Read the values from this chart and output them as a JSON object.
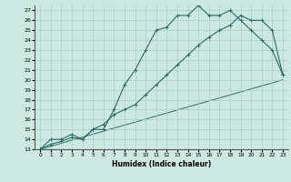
{
  "xlabel": "Humidex (Indice chaleur)",
  "bg_color": "#cce8e0",
  "grid_color": "#aacccc",
  "line_color": "#2a6b65",
  "xlim": [
    -0.5,
    23.5
  ],
  "ylim": [
    13,
    27.5
  ],
  "xticks": [
    0,
    1,
    2,
    3,
    4,
    5,
    6,
    7,
    8,
    9,
    10,
    11,
    12,
    13,
    14,
    15,
    16,
    17,
    18,
    19,
    20,
    21,
    22,
    23
  ],
  "yticks": [
    13,
    14,
    15,
    16,
    17,
    18,
    19,
    20,
    21,
    22,
    23,
    24,
    25,
    26,
    27
  ],
  "line1_x": [
    0,
    1,
    2,
    3,
    4,
    5,
    6,
    7,
    8,
    9,
    10,
    11,
    12,
    13,
    14,
    15,
    16,
    17,
    18,
    19,
    20,
    21,
    22,
    23
  ],
  "line1_y": [
    13,
    14,
    14,
    14.5,
    14,
    15,
    15,
    17,
    19.5,
    21,
    23,
    25,
    25.3,
    26.5,
    26.5,
    27.5,
    26.5,
    26.5,
    27,
    26,
    25,
    24,
    23,
    20.5
  ],
  "line2_x": [
    0,
    1,
    2,
    3,
    4,
    5,
    6,
    7,
    8,
    9,
    10,
    11,
    12,
    13,
    14,
    15,
    16,
    17,
    18,
    19,
    20,
    21,
    22,
    23
  ],
  "line2_y": [
    13,
    13.5,
    13.8,
    14.2,
    14,
    15,
    15.5,
    16.5,
    17,
    17.5,
    18.5,
    19.5,
    20.5,
    21.5,
    22.5,
    23.5,
    24.3,
    25,
    25.5,
    26.5,
    26,
    26,
    25,
    20.5
  ],
  "line3_x": [
    0,
    23
  ],
  "line3_y": [
    13,
    20
  ]
}
